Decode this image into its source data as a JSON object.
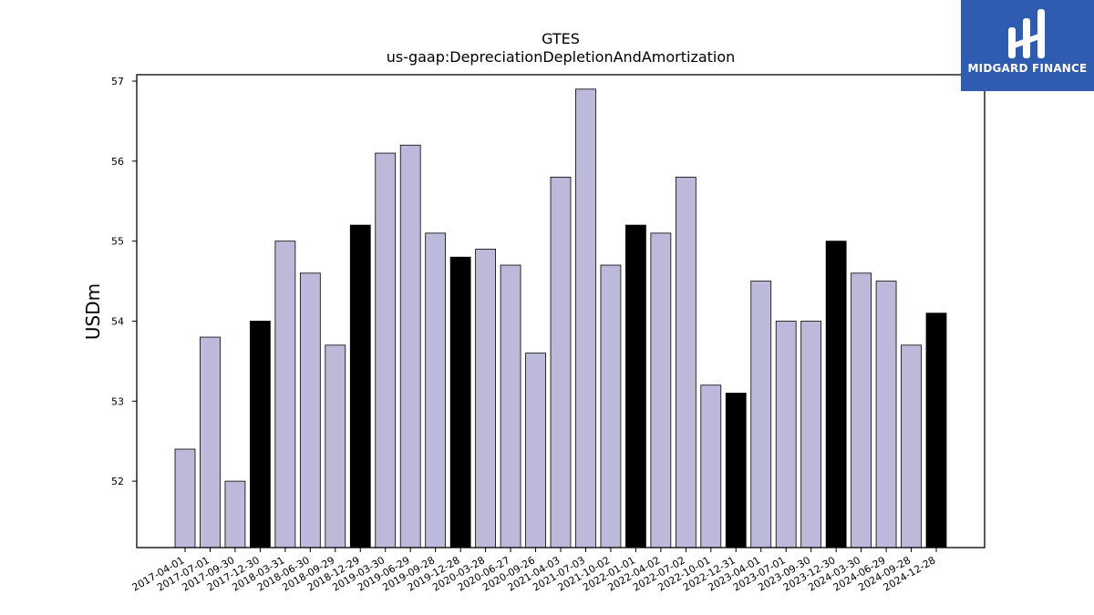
{
  "chart_data": {
    "type": "bar",
    "title": "GTES",
    "subtitle": "us-gaap:DepreciationDepletionAndAmortization",
    "xlabel": "",
    "ylabel": "USDm",
    "ylim": [
      51.17,
      57.08
    ],
    "yticks": [
      52,
      53,
      54,
      55,
      56,
      57
    ],
    "categories": [
      "2017-04-01",
      "2017-07-01",
      "2017-09-30",
      "2017-12-30",
      "2018-03-31",
      "2018-06-30",
      "2018-09-29",
      "2018-12-29",
      "2019-03-30",
      "2019-06-29",
      "2019-09-28",
      "2019-12-28",
      "2020-03-28",
      "2020-06-27",
      "2020-09-26",
      "2021-04-03",
      "2021-07-03",
      "2021-10-02",
      "2022-01-01",
      "2022-04-02",
      "2022-07-02",
      "2022-10-01",
      "2022-12-31",
      "2023-04-01",
      "2023-07-01",
      "2023-09-30",
      "2023-12-30",
      "2024-03-30",
      "2024-06-29",
      "2024-09-28",
      "2024-12-28"
    ],
    "values": [
      52.4,
      53.8,
      52.0,
      54.0,
      55.0,
      54.6,
      53.7,
      55.2,
      56.1,
      56.2,
      55.1,
      54.8,
      54.9,
      54.7,
      53.6,
      55.8,
      56.9,
      54.7,
      55.2,
      55.1,
      55.8,
      53.2,
      53.1,
      54.5,
      54.0,
      54.0,
      55.0,
      54.6,
      54.5,
      53.7,
      54.1
    ],
    "highlighted": [
      false,
      false,
      false,
      true,
      false,
      false,
      false,
      true,
      false,
      false,
      false,
      true,
      false,
      false,
      false,
      false,
      false,
      false,
      true,
      false,
      false,
      false,
      true,
      false,
      false,
      false,
      true,
      false,
      false,
      false,
      true
    ],
    "colors": {
      "bar": "#bcb9da",
      "highlight": "#000000",
      "edge": "#000000"
    },
    "grid": false
  },
  "logo": {
    "text": "MIDGARD FINANCE",
    "background": "#2f5bb0"
  }
}
